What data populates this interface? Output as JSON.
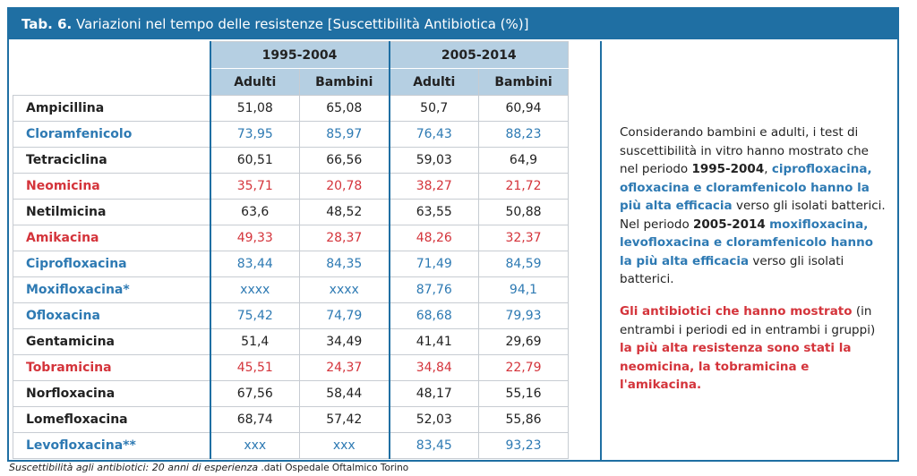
{
  "title": {
    "prefix": "Tab. 6.",
    "text": " Variazioni nel tempo delle resistenze [Suscettibilità Antibiotica (%)]"
  },
  "colors": {
    "accent": "#1f6fa3",
    "header_bg": "#b5cfe2",
    "blue": "#2e7ab3",
    "red": "#d4343b"
  },
  "table": {
    "periods": [
      "1995-2004",
      "2005-2014"
    ],
    "groups": [
      "Adulti",
      "Bambini",
      "Adulti",
      "Bambini"
    ],
    "rows": [
      {
        "name": "Ampicillina",
        "color": "black",
        "values": [
          "51,08",
          "65,08",
          "50,7",
          "60,94"
        ]
      },
      {
        "name": "Cloramfenicolo",
        "color": "blue",
        "values": [
          "73,95",
          "85,97",
          "76,43",
          "88,23"
        ]
      },
      {
        "name": "Tetraciclina",
        "color": "black",
        "values": [
          "60,51",
          "66,56",
          "59,03",
          "64,9"
        ]
      },
      {
        "name": "Neomicina",
        "color": "red",
        "values": [
          "35,71",
          "20,78",
          "38,27",
          "21,72"
        ]
      },
      {
        "name": "Netilmicina",
        "color": "black",
        "values": [
          "63,6",
          "48,52",
          "63,55",
          "50,88"
        ]
      },
      {
        "name": "Amikacina",
        "color": "red",
        "values": [
          "49,33",
          "28,37",
          "48,26",
          "32,37"
        ]
      },
      {
        "name": "Ciprofloxacina",
        "color": "blue",
        "values": [
          "83,44",
          "84,35",
          "71,49",
          "84,59"
        ]
      },
      {
        "name": "Moxifloxacina*",
        "color": "blue",
        "values": [
          "xxxx",
          "xxxx",
          "87,76",
          "94,1"
        ]
      },
      {
        "name": "Ofloxacina",
        "color": "blue",
        "values": [
          "75,42",
          "74,79",
          "68,68",
          "79,93"
        ]
      },
      {
        "name": "Gentamicina",
        "color": "black",
        "values": [
          "51,4",
          "34,49",
          "41,41",
          "29,69"
        ]
      },
      {
        "name": "Tobramicina",
        "color": "red",
        "values": [
          "45,51",
          "24,37",
          "34,84",
          "22,79"
        ]
      },
      {
        "name": "Norfloxacina",
        "color": "black",
        "values": [
          "67,56",
          "58,44",
          "48,17",
          "55,16"
        ]
      },
      {
        "name": "Lomefloxacina",
        "color": "black",
        "values": [
          "68,74",
          "57,42",
          "52,03",
          "55,86"
        ]
      },
      {
        "name": "Levofloxacina**",
        "color": "blue",
        "values": [
          "xxx",
          "xxx",
          "83,45",
          "93,23"
        ]
      }
    ]
  },
  "side": {
    "p1": {
      "t1": "Considerando bambini e adulti, i test di suscettibilità in vitro hanno mostrato che nel periodo ",
      "period1": "1995-2004",
      "t2": ", ",
      "hl1": "ciprofloxacina, ofloxacina e cloramfenicolo hanno la più alta efficacia",
      "t3": " verso gli isolati batterici.",
      "t4": "Nel periodo ",
      "period2": "2005-2014",
      "t5": " ",
      "hl2": "moxifloxacina, levofloxacina e cloramfenicolo hanno la più alta efficacia",
      "t6": " verso gli isolati batterici."
    },
    "p2": {
      "hl1": "Gli antibiotici che hanno mostrato",
      "t1": " (in entrambi i periodi ed in entrambi i gruppi) ",
      "hl2": "la più alta resistenza sono stati la neomicina, la tobramicina e l'amikacina."
    }
  },
  "caption": {
    "italic": "Suscettibilità agli antibiotici: 20 anni di esperienza",
    "plain": "  .dati Ospedale Oftalmico Torino"
  }
}
